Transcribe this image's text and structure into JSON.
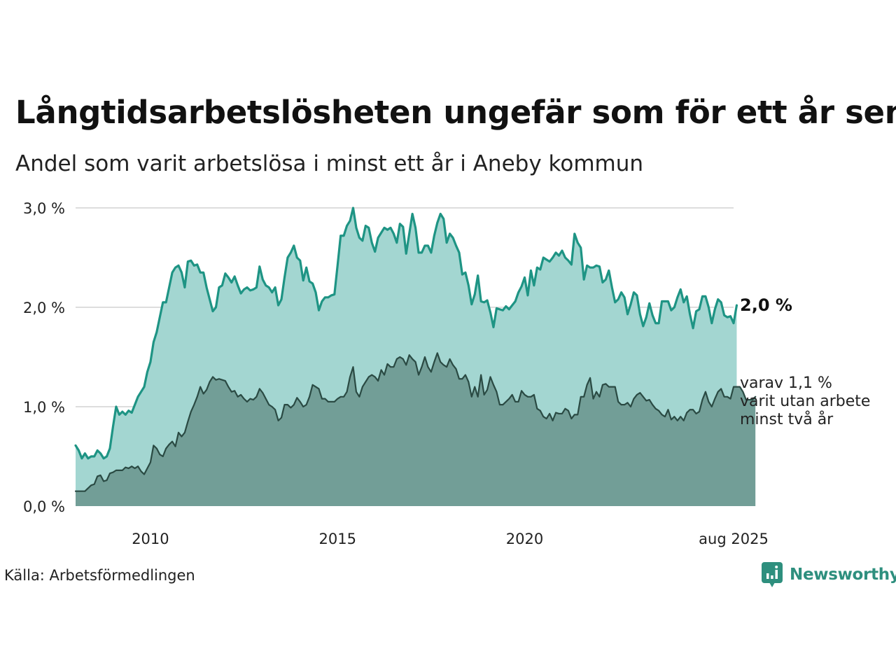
{
  "title": "Långtidsarbetslösheten ungefär som för ett år sen",
  "subtitle": "Andel som varit arbetslösa i minst ett år i Aneby kommun",
  "source": "Källa: Arbetsförmedlingen",
  "brand": {
    "name": "Newsworthy",
    "icon": "newsworthy-logo-icon",
    "color": "#2e8f7e"
  },
  "colors": {
    "main_line": "#1e9484",
    "main_fill": "#a3d6d1",
    "sub_line": "#2a4a43",
    "sub_fill": "#729e97",
    "grid": "#dddddd"
  },
  "chart_data": {
    "type": "area",
    "x_start": "2008-01",
    "x_end": "2025-08",
    "frequency": "monthly",
    "x_ticks": [
      {
        "label": "2010",
        "date": "2010-01"
      },
      {
        "label": "2015",
        "date": "2015-01"
      },
      {
        "label": "2020",
        "date": "2020-01"
      },
      {
        "label": "aug 2025",
        "date": "2025-08"
      }
    ],
    "ylim": [
      0,
      3
    ],
    "y_ticks": [
      {
        "value": 0,
        "label": "0,0 %"
      },
      {
        "value": 1,
        "label": "1,0 %"
      },
      {
        "value": 2,
        "label": "2,0 %"
      },
      {
        "value": 3,
        "label": "3,0 %"
      }
    ],
    "grid": true,
    "series": [
      {
        "name": "minst ett år",
        "end_label": "2,0 %",
        "values": [
          0.61,
          0.56,
          0.48,
          0.53,
          0.48,
          0.5,
          0.5,
          0.56,
          0.53,
          0.48,
          0.5,
          0.58,
          0.8,
          1.0,
          0.92,
          0.95,
          0.92,
          0.96,
          0.94,
          1.02,
          1.1,
          1.15,
          1.2,
          1.35,
          1.45,
          1.65,
          1.75,
          1.9,
          2.05,
          2.05,
          2.2,
          2.35,
          2.4,
          2.42,
          2.35,
          2.2,
          2.46,
          2.47,
          2.42,
          2.43,
          2.35,
          2.35,
          2.2,
          2.08,
          1.96,
          2.0,
          2.2,
          2.22,
          2.34,
          2.3,
          2.25,
          2.31,
          2.22,
          2.14,
          2.18,
          2.2,
          2.17,
          2.18,
          2.2,
          2.41,
          2.28,
          2.22,
          2.2,
          2.15,
          2.2,
          2.02,
          2.08,
          2.3,
          2.5,
          2.55,
          2.62,
          2.5,
          2.47,
          2.27,
          2.4,
          2.26,
          2.24,
          2.15,
          1.97,
          2.06,
          2.1,
          2.1,
          2.12,
          2.13,
          2.42,
          2.72,
          2.72,
          2.82,
          2.87,
          3.0,
          2.8,
          2.7,
          2.67,
          2.82,
          2.8,
          2.65,
          2.56,
          2.7,
          2.75,
          2.8,
          2.78,
          2.8,
          2.74,
          2.65,
          2.84,
          2.81,
          2.54,
          2.74,
          2.94,
          2.8,
          2.55,
          2.55,
          2.62,
          2.62,
          2.55,
          2.72,
          2.85,
          2.94,
          2.89,
          2.65,
          2.74,
          2.7,
          2.62,
          2.55,
          2.33,
          2.35,
          2.22,
          2.03,
          2.13,
          2.32,
          2.06,
          2.05,
          2.07,
          1.95,
          1.8,
          1.99,
          1.98,
          1.97,
          2.01,
          1.98,
          2.02,
          2.06,
          2.15,
          2.21,
          2.3,
          2.12,
          2.37,
          2.22,
          2.4,
          2.38,
          2.5,
          2.48,
          2.46,
          2.5,
          2.55,
          2.52,
          2.57,
          2.5,
          2.47,
          2.43,
          2.74,
          2.65,
          2.6,
          2.28,
          2.42,
          2.4,
          2.4,
          2.42,
          2.41,
          2.25,
          2.28,
          2.37,
          2.2,
          2.05,
          2.08,
          2.15,
          2.1,
          1.93,
          2.03,
          2.15,
          2.12,
          1.93,
          1.81,
          1.9,
          2.04,
          1.92,
          1.84,
          1.84,
          2.06,
          2.06,
          2.06,
          1.97,
          2.0,
          2.1,
          2.18,
          2.05,
          2.11,
          1.93,
          1.79,
          1.96,
          1.98,
          2.11,
          2.11,
          2.0,
          1.84,
          1.98,
          2.08,
          2.05,
          1.92,
          1.9,
          1.91,
          1.84,
          2.02
        ]
      },
      {
        "name": "minst två år",
        "end_label": [
          "varav 1,1 %",
          "varit utan arbete",
          "minst två år"
        ],
        "values": [
          0.15,
          0.15,
          0.15,
          0.15,
          0.18,
          0.21,
          0.22,
          0.3,
          0.31,
          0.25,
          0.26,
          0.33,
          0.34,
          0.36,
          0.36,
          0.36,
          0.39,
          0.38,
          0.4,
          0.38,
          0.4,
          0.35,
          0.32,
          0.38,
          0.44,
          0.61,
          0.58,
          0.52,
          0.5,
          0.58,
          0.62,
          0.65,
          0.6,
          0.74,
          0.7,
          0.74,
          0.85,
          0.95,
          1.02,
          1.1,
          1.2,
          1.13,
          1.17,
          1.25,
          1.3,
          1.27,
          1.28,
          1.27,
          1.26,
          1.2,
          1.15,
          1.16,
          1.1,
          1.12,
          1.08,
          1.05,
          1.08,
          1.07,
          1.1,
          1.18,
          1.14,
          1.08,
          1.02,
          1.0,
          0.97,
          0.86,
          0.89,
          1.02,
          1.02,
          0.99,
          1.02,
          1.09,
          1.05,
          1.0,
          1.02,
          1.1,
          1.22,
          1.2,
          1.18,
          1.08,
          1.08,
          1.05,
          1.05,
          1.05,
          1.08,
          1.1,
          1.1,
          1.15,
          1.3,
          1.4,
          1.15,
          1.1,
          1.2,
          1.25,
          1.3,
          1.32,
          1.3,
          1.26,
          1.37,
          1.32,
          1.43,
          1.4,
          1.4,
          1.48,
          1.5,
          1.48,
          1.42,
          1.52,
          1.48,
          1.45,
          1.32,
          1.4,
          1.5,
          1.4,
          1.35,
          1.45,
          1.54,
          1.45,
          1.42,
          1.4,
          1.48,
          1.42,
          1.38,
          1.28,
          1.28,
          1.32,
          1.25,
          1.1,
          1.2,
          1.1,
          1.32,
          1.12,
          1.17,
          1.3,
          1.22,
          1.15,
          1.02,
          1.02,
          1.05,
          1.08,
          1.12,
          1.05,
          1.05,
          1.16,
          1.12,
          1.1,
          1.1,
          1.12,
          0.98,
          0.96,
          0.9,
          0.88,
          0.93,
          0.86,
          0.94,
          0.93,
          0.93,
          0.98,
          0.96,
          0.88,
          0.92,
          0.92,
          1.1,
          1.1,
          1.22,
          1.29,
          1.08,
          1.15,
          1.1,
          1.22,
          1.23,
          1.2,
          1.2,
          1.2,
          1.05,
          1.02,
          1.02,
          1.04,
          1.0,
          1.08,
          1.12,
          1.14,
          1.1,
          1.06,
          1.07,
          1.02,
          0.98,
          0.96,
          0.92,
          0.9,
          0.97,
          0.87,
          0.9,
          0.86,
          0.9,
          0.86,
          0.94,
          0.97,
          0.97,
          0.93,
          0.95,
          1.07,
          1.15,
          1.05,
          1.0,
          1.08,
          1.15,
          1.18,
          1.1,
          1.1,
          1.08,
          1.2,
          1.2,
          1.2,
          1.15,
          1.07,
          1.07,
          1.07,
          1.1
        ]
      }
    ]
  }
}
